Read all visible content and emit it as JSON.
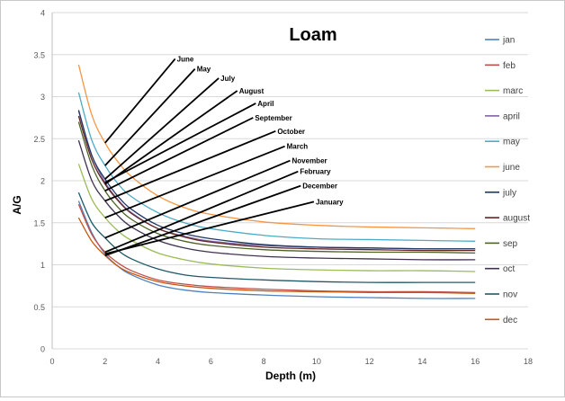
{
  "chart_data": {
    "type": "line",
    "title": "Loam",
    "xlabel": "Depth (m)",
    "ylabel": "A/G",
    "xlim": [
      0,
      18
    ],
    "ylim": [
      0,
      4
    ],
    "xticks": [
      0,
      2,
      4,
      6,
      8,
      10,
      12,
      14,
      16,
      18
    ],
    "yticks": [
      0,
      0.5,
      1,
      1.5,
      2,
      2.5,
      3,
      3.5,
      4
    ],
    "grid": "horizontal",
    "legend_position": "right",
    "x": [
      1,
      1.5,
      2,
      2.5,
      3,
      4,
      5,
      6,
      8,
      10,
      12,
      14,
      16
    ],
    "series": [
      {
        "name": "jan",
        "color": "#4f81bd",
        "values": [
          1.76,
          1.38,
          1.13,
          0.98,
          0.88,
          0.76,
          0.7,
          0.67,
          0.64,
          0.62,
          0.61,
          0.6,
          0.6
        ]
      },
      {
        "name": "feb",
        "color": "#c0504d",
        "values": [
          1.72,
          1.36,
          1.15,
          1.02,
          0.93,
          0.82,
          0.77,
          0.74,
          0.71,
          0.69,
          0.68,
          0.68,
          0.67
        ]
      },
      {
        "name": "marc",
        "color": "#9bbb59",
        "values": [
          2.2,
          1.78,
          1.56,
          1.4,
          1.29,
          1.14,
          1.06,
          1.01,
          0.96,
          0.94,
          0.93,
          0.93,
          0.92
        ]
      },
      {
        "name": "april",
        "color": "#8064a2",
        "values": [
          2.83,
          2.3,
          1.98,
          1.77,
          1.62,
          1.43,
          1.34,
          1.28,
          1.23,
          1.21,
          1.2,
          1.19,
          1.19
        ]
      },
      {
        "name": "may",
        "color": "#4bacc6",
        "values": [
          3.05,
          2.48,
          2.18,
          1.96,
          1.81,
          1.62,
          1.5,
          1.43,
          1.35,
          1.31,
          1.3,
          1.29,
          1.28
        ]
      },
      {
        "name": "june",
        "color": "#f79646",
        "values": [
          3.38,
          2.78,
          2.45,
          2.22,
          2.05,
          1.82,
          1.68,
          1.6,
          1.51,
          1.47,
          1.45,
          1.44,
          1.43
        ]
      },
      {
        "name": "july",
        "color": "#1f3864",
        "values": [
          2.84,
          2.3,
          2.02,
          1.81,
          1.66,
          1.47,
          1.37,
          1.31,
          1.24,
          1.21,
          1.2,
          1.19,
          1.19
        ]
      },
      {
        "name": "august",
        "color": "#632523",
        "values": [
          2.77,
          2.25,
          1.96,
          1.76,
          1.61,
          1.43,
          1.33,
          1.27,
          1.21,
          1.19,
          1.18,
          1.17,
          1.17
        ]
      },
      {
        "name": "sep",
        "color": "#4f6228",
        "values": [
          2.7,
          2.18,
          1.88,
          1.68,
          1.54,
          1.37,
          1.28,
          1.23,
          1.18,
          1.16,
          1.15,
          1.15,
          1.14
        ]
      },
      {
        "name": "oct",
        "color": "#403152",
        "values": [
          2.48,
          2.0,
          1.76,
          1.58,
          1.45,
          1.29,
          1.2,
          1.15,
          1.1,
          1.08,
          1.07,
          1.06,
          1.06
        ]
      },
      {
        "name": "nov",
        "color": "#215968",
        "values": [
          1.86,
          1.5,
          1.32,
          1.17,
          1.07,
          0.95,
          0.88,
          0.85,
          0.82,
          0.8,
          0.79,
          0.79,
          0.79
        ]
      },
      {
        "name": "dec",
        "color": "#c65911",
        "values": [
          1.56,
          1.28,
          1.11,
          0.98,
          0.9,
          0.8,
          0.75,
          0.72,
          0.69,
          0.68,
          0.67,
          0.67,
          0.66
        ]
      }
    ],
    "annotations": [
      {
        "text": "June",
        "x": 2.0,
        "y": 2.45,
        "label_x": 4.65,
        "label_y": 3.45
      },
      {
        "text": "May",
        "x": 2.0,
        "y": 2.18,
        "label_x": 5.4,
        "label_y": 3.33
      },
      {
        "text": "July",
        "x": 2.0,
        "y": 2.02,
        "label_x": 6.3,
        "label_y": 3.22
      },
      {
        "text": "August",
        "x": 2.0,
        "y": 1.96,
        "label_x": 7.0,
        "label_y": 3.07
      },
      {
        "text": "April",
        "x": 2.0,
        "y": 1.98,
        "label_x": 7.7,
        "label_y": 2.92
      },
      {
        "text": "September",
        "x": 2.0,
        "y": 1.88,
        "label_x": 7.6,
        "label_y": 2.75
      },
      {
        "text": "October",
        "x": 2.0,
        "y": 1.76,
        "label_x": 8.45,
        "label_y": 2.59
      },
      {
        "text": "March",
        "x": 2.0,
        "y": 1.56,
        "label_x": 8.8,
        "label_y": 2.41
      },
      {
        "text": "November",
        "x": 2.0,
        "y": 1.32,
        "label_x": 9.0,
        "label_y": 2.24
      },
      {
        "text": "February",
        "x": 2.0,
        "y": 1.15,
        "label_x": 9.3,
        "label_y": 2.11
      },
      {
        "text": "December",
        "x": 2.0,
        "y": 1.11,
        "label_x": 9.4,
        "label_y": 1.94
      },
      {
        "text": "January",
        "x": 2.0,
        "y": 1.13,
        "label_x": 9.9,
        "label_y": 1.75
      }
    ]
  }
}
